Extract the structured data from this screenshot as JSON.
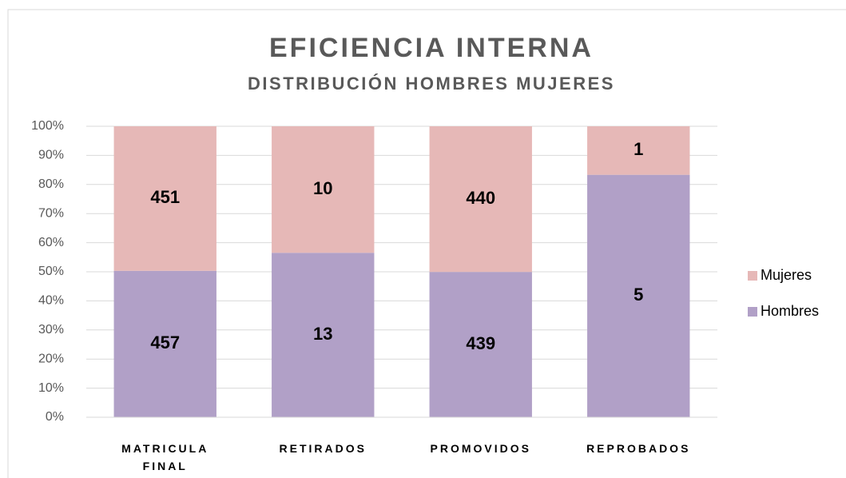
{
  "chart_data": {
    "type": "bar",
    "stacking": "percent",
    "title": "EFICIENCIA INTERNA",
    "subtitle": "DISTRIBUCIÓN HOMBRES MUJERES",
    "categories": [
      "MATRICULA FINAL",
      "RETIRADOS",
      "PROMOVIDOS",
      "REPROBADOS"
    ],
    "series": [
      {
        "name": "Hombres",
        "color": "#b1a0c7",
        "values": [
          457,
          13,
          439,
          5
        ]
      },
      {
        "name": "Mujeres",
        "color": "#e6b8b7",
        "values": [
          451,
          10,
          440,
          1
        ]
      }
    ],
    "ylim": [
      0,
      100
    ],
    "yticks": [
      {
        "value": 0,
        "label": "0%"
      },
      {
        "value": 10,
        "label": "10%"
      },
      {
        "value": 20,
        "label": "20%"
      },
      {
        "value": 30,
        "label": "30%"
      },
      {
        "value": 40,
        "label": "40%"
      },
      {
        "value": 50,
        "label": "50%"
      },
      {
        "value": 60,
        "label": "60%"
      },
      {
        "value": 70,
        "label": "70%"
      },
      {
        "value": 80,
        "label": "80%"
      },
      {
        "value": 90,
        "label": "90%"
      },
      {
        "value": 100,
        "label": "100%"
      }
    ],
    "grid": true,
    "legend": "right"
  }
}
